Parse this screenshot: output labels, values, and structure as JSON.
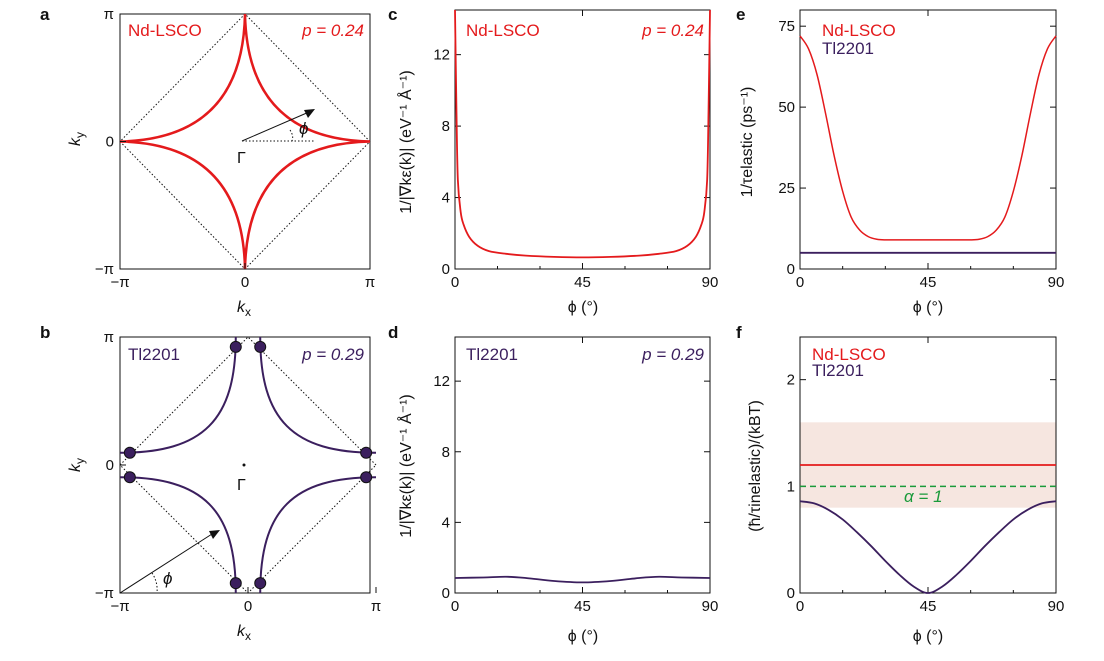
{
  "colors": {
    "nd": "#e41a1c",
    "tl": "#3b1f5e",
    "dash": "#1a9a3a",
    "band": "#f6e6e0",
    "axis": "#111111"
  },
  "panels": {
    "a": {
      "letter": "a",
      "material": "Nd-LSCO",
      "doping": "p = 0.24",
      "xticks": [
        "−π",
        "0",
        "π"
      ],
      "yticks": [
        "π",
        "0",
        "−π"
      ],
      "xlabel": "k",
      "xlabel_sub": "x",
      "ylabel": "k",
      "ylabel_sub": "y",
      "gamma": "Γ",
      "phi": "ϕ"
    },
    "b": {
      "letter": "b",
      "material": "Tl2201",
      "doping": "p = 0.29",
      "xticks": [
        "−π",
        "0",
        "π"
      ],
      "yticks": [
        "π",
        "0",
        "−π"
      ],
      "xlabel": "k",
      "xlabel_sub": "x",
      "ylabel": "k",
      "ylabel_sub": "y",
      "gamma": "Γ",
      "phi": "ϕ"
    },
    "c": {
      "letter": "c",
      "material": "Nd-LSCO",
      "doping": "p = 0.24",
      "ylabel": "1/|∇kε(k)| (eV⁻¹ Å⁻¹)",
      "xlabel": "ϕ (°)",
      "xticks": [
        "0",
        "45",
        "90"
      ],
      "yticks": [
        "0",
        "4",
        "8",
        "12"
      ]
    },
    "d": {
      "letter": "d",
      "material": "Tl2201",
      "doping": "p = 0.29",
      "ylabel": "1/|∇kε(k)| (eV⁻¹ Å⁻¹)",
      "xlabel": "ϕ (°)",
      "xticks": [
        "0",
        "45",
        "90"
      ],
      "yticks": [
        "0",
        "4",
        "8",
        "12"
      ]
    },
    "e": {
      "letter": "e",
      "legend": [
        "Nd-LSCO",
        "Tl2201"
      ],
      "ylabel": "1/τelastic (ps⁻¹)",
      "xlabel": "ϕ (°)",
      "xticks": [
        "0",
        "45",
        "90"
      ],
      "yticks": [
        "0",
        "25",
        "50",
        "75"
      ]
    },
    "f": {
      "letter": "f",
      "legend": [
        "Nd-LSCO",
        "Tl2201"
      ],
      "ylabel": "(ħ/τinelastic)/(kBT)",
      "xlabel": "ϕ (°)",
      "xticks": [
        "0",
        "45",
        "90"
      ],
      "yticks": [
        "0",
        "1",
        "2"
      ],
      "annotation": "α = 1"
    }
  },
  "chart_data": [
    {
      "panel": "a",
      "type": "line",
      "title": "Nd-LSCO  p = 0.24",
      "xlabel": "kx",
      "ylabel": "ky",
      "xlim": [
        -3.1416,
        3.1416
      ],
      "ylim": [
        -3.1416,
        3.1416
      ],
      "description_free": true,
      "series": [
        {
          "name": "Nd-LSCO",
          "curve": "hole-like Fermi surface centred at Γ",
          "vertices": [
            [
              3.1416,
              0
            ],
            [
              0,
              3.1416
            ],
            [
              -3.1416,
              0
            ],
            [
              0,
              -3.1416
            ]
          ],
          "mid_edge_radius_fraction": 0.5
        }
      ]
    },
    {
      "panel": "b",
      "type": "line",
      "title": "Tl2201  p = 0.29",
      "xlabel": "kx",
      "ylabel": "ky",
      "xlim": [
        -3.1416,
        3.1416
      ],
      "ylim": [
        -3.1416,
        3.1416
      ],
      "series": [
        {
          "name": "Tl2201",
          "curve": "electron-like pockets around (±π, ±π)",
          "zone_boundary_crossings": [
            [
              -0.3,
              2.9
            ],
            [
              0.3,
              2.9
            ],
            [
              2.9,
              0.3
            ],
            [
              2.9,
              -0.3
            ],
            [
              0.3,
              -2.9
            ],
            [
              -0.3,
              -2.9
            ],
            [
              -2.9,
              -0.3
            ],
            [
              -2.9,
              0.3
            ]
          ]
        }
      ]
    },
    {
      "panel": "c",
      "type": "line",
      "xlabel": "ϕ (°)",
      "ylabel": "1/|∇kε(k)| (eV⁻¹ Å⁻¹)",
      "xlim": [
        0,
        90
      ],
      "ylim": [
        0,
        14.5
      ],
      "series": [
        {
          "name": "Nd-LSCO",
          "x": [
            0,
            0.5,
            1,
            2,
            3,
            5,
            8,
            12,
            18,
            25,
            35,
            45,
            55,
            65,
            72,
            78,
            82,
            85,
            87,
            88,
            89,
            89.5,
            90
          ],
          "y": [
            14.5,
            9.0,
            5.0,
            3.2,
            2.5,
            1.8,
            1.3,
            1.0,
            0.85,
            0.75,
            0.68,
            0.65,
            0.68,
            0.75,
            0.85,
            1.0,
            1.3,
            1.8,
            2.5,
            3.2,
            5.0,
            9.0,
            14.5
          ]
        }
      ]
    },
    {
      "panel": "d",
      "type": "line",
      "xlabel": "ϕ (°)",
      "ylabel": "1/|∇kε(k)| (eV⁻¹ Å⁻¹)",
      "xlim": [
        0,
        90
      ],
      "ylim": [
        0,
        14.5
      ],
      "series": [
        {
          "name": "Tl2201",
          "x": [
            0,
            10,
            18,
            25,
            35,
            45,
            55,
            65,
            72,
            80,
            90
          ],
          "y": [
            0.85,
            0.88,
            0.92,
            0.85,
            0.68,
            0.6,
            0.68,
            0.85,
            0.92,
            0.88,
            0.85
          ]
        }
      ]
    },
    {
      "panel": "e",
      "type": "line",
      "xlabel": "ϕ (°)",
      "ylabel": "1/τelastic (ps⁻¹)",
      "xlim": [
        0,
        90
      ],
      "ylim": [
        0,
        80
      ],
      "series": [
        {
          "name": "Nd-LSCO",
          "x": [
            0,
            3,
            6,
            9,
            12,
            15,
            18,
            21,
            24,
            27,
            30,
            35,
            45,
            55,
            60,
            63,
            66,
            69,
            72,
            75,
            78,
            81,
            84,
            87,
            90
          ],
          "y": [
            72,
            68,
            60,
            48,
            35,
            24,
            16,
            12,
            10,
            9.2,
            9,
            9,
            9,
            9,
            9,
            9.2,
            10,
            12,
            16,
            24,
            35,
            48,
            60,
            68,
            72
          ]
        },
        {
          "name": "Tl2201",
          "x": [
            0,
            90
          ],
          "y": [
            5,
            5
          ]
        }
      ]
    },
    {
      "panel": "f",
      "type": "line",
      "xlabel": "ϕ (°)",
      "ylabel": "(ħ/τinelastic)/(kBT)",
      "xlim": [
        0,
        90
      ],
      "ylim": [
        0,
        2.4
      ],
      "band": {
        "y": [
          0.8,
          1.6
        ]
      },
      "reference_line": {
        "label": "α = 1",
        "y": 1.0
      },
      "series": [
        {
          "name": "Nd-LSCO",
          "x": [
            0,
            90
          ],
          "y": [
            1.2,
            1.2
          ]
        },
        {
          "name": "Tl2201",
          "x": [
            0,
            5,
            10,
            15,
            20,
            25,
            30,
            35,
            40,
            45,
            50,
            55,
            60,
            65,
            70,
            75,
            80,
            85,
            90
          ],
          "y": [
            0.86,
            0.84,
            0.78,
            0.69,
            0.57,
            0.44,
            0.3,
            0.17,
            0.06,
            0.0,
            0.06,
            0.17,
            0.3,
            0.44,
            0.57,
            0.69,
            0.78,
            0.84,
            0.86
          ]
        }
      ]
    }
  ]
}
